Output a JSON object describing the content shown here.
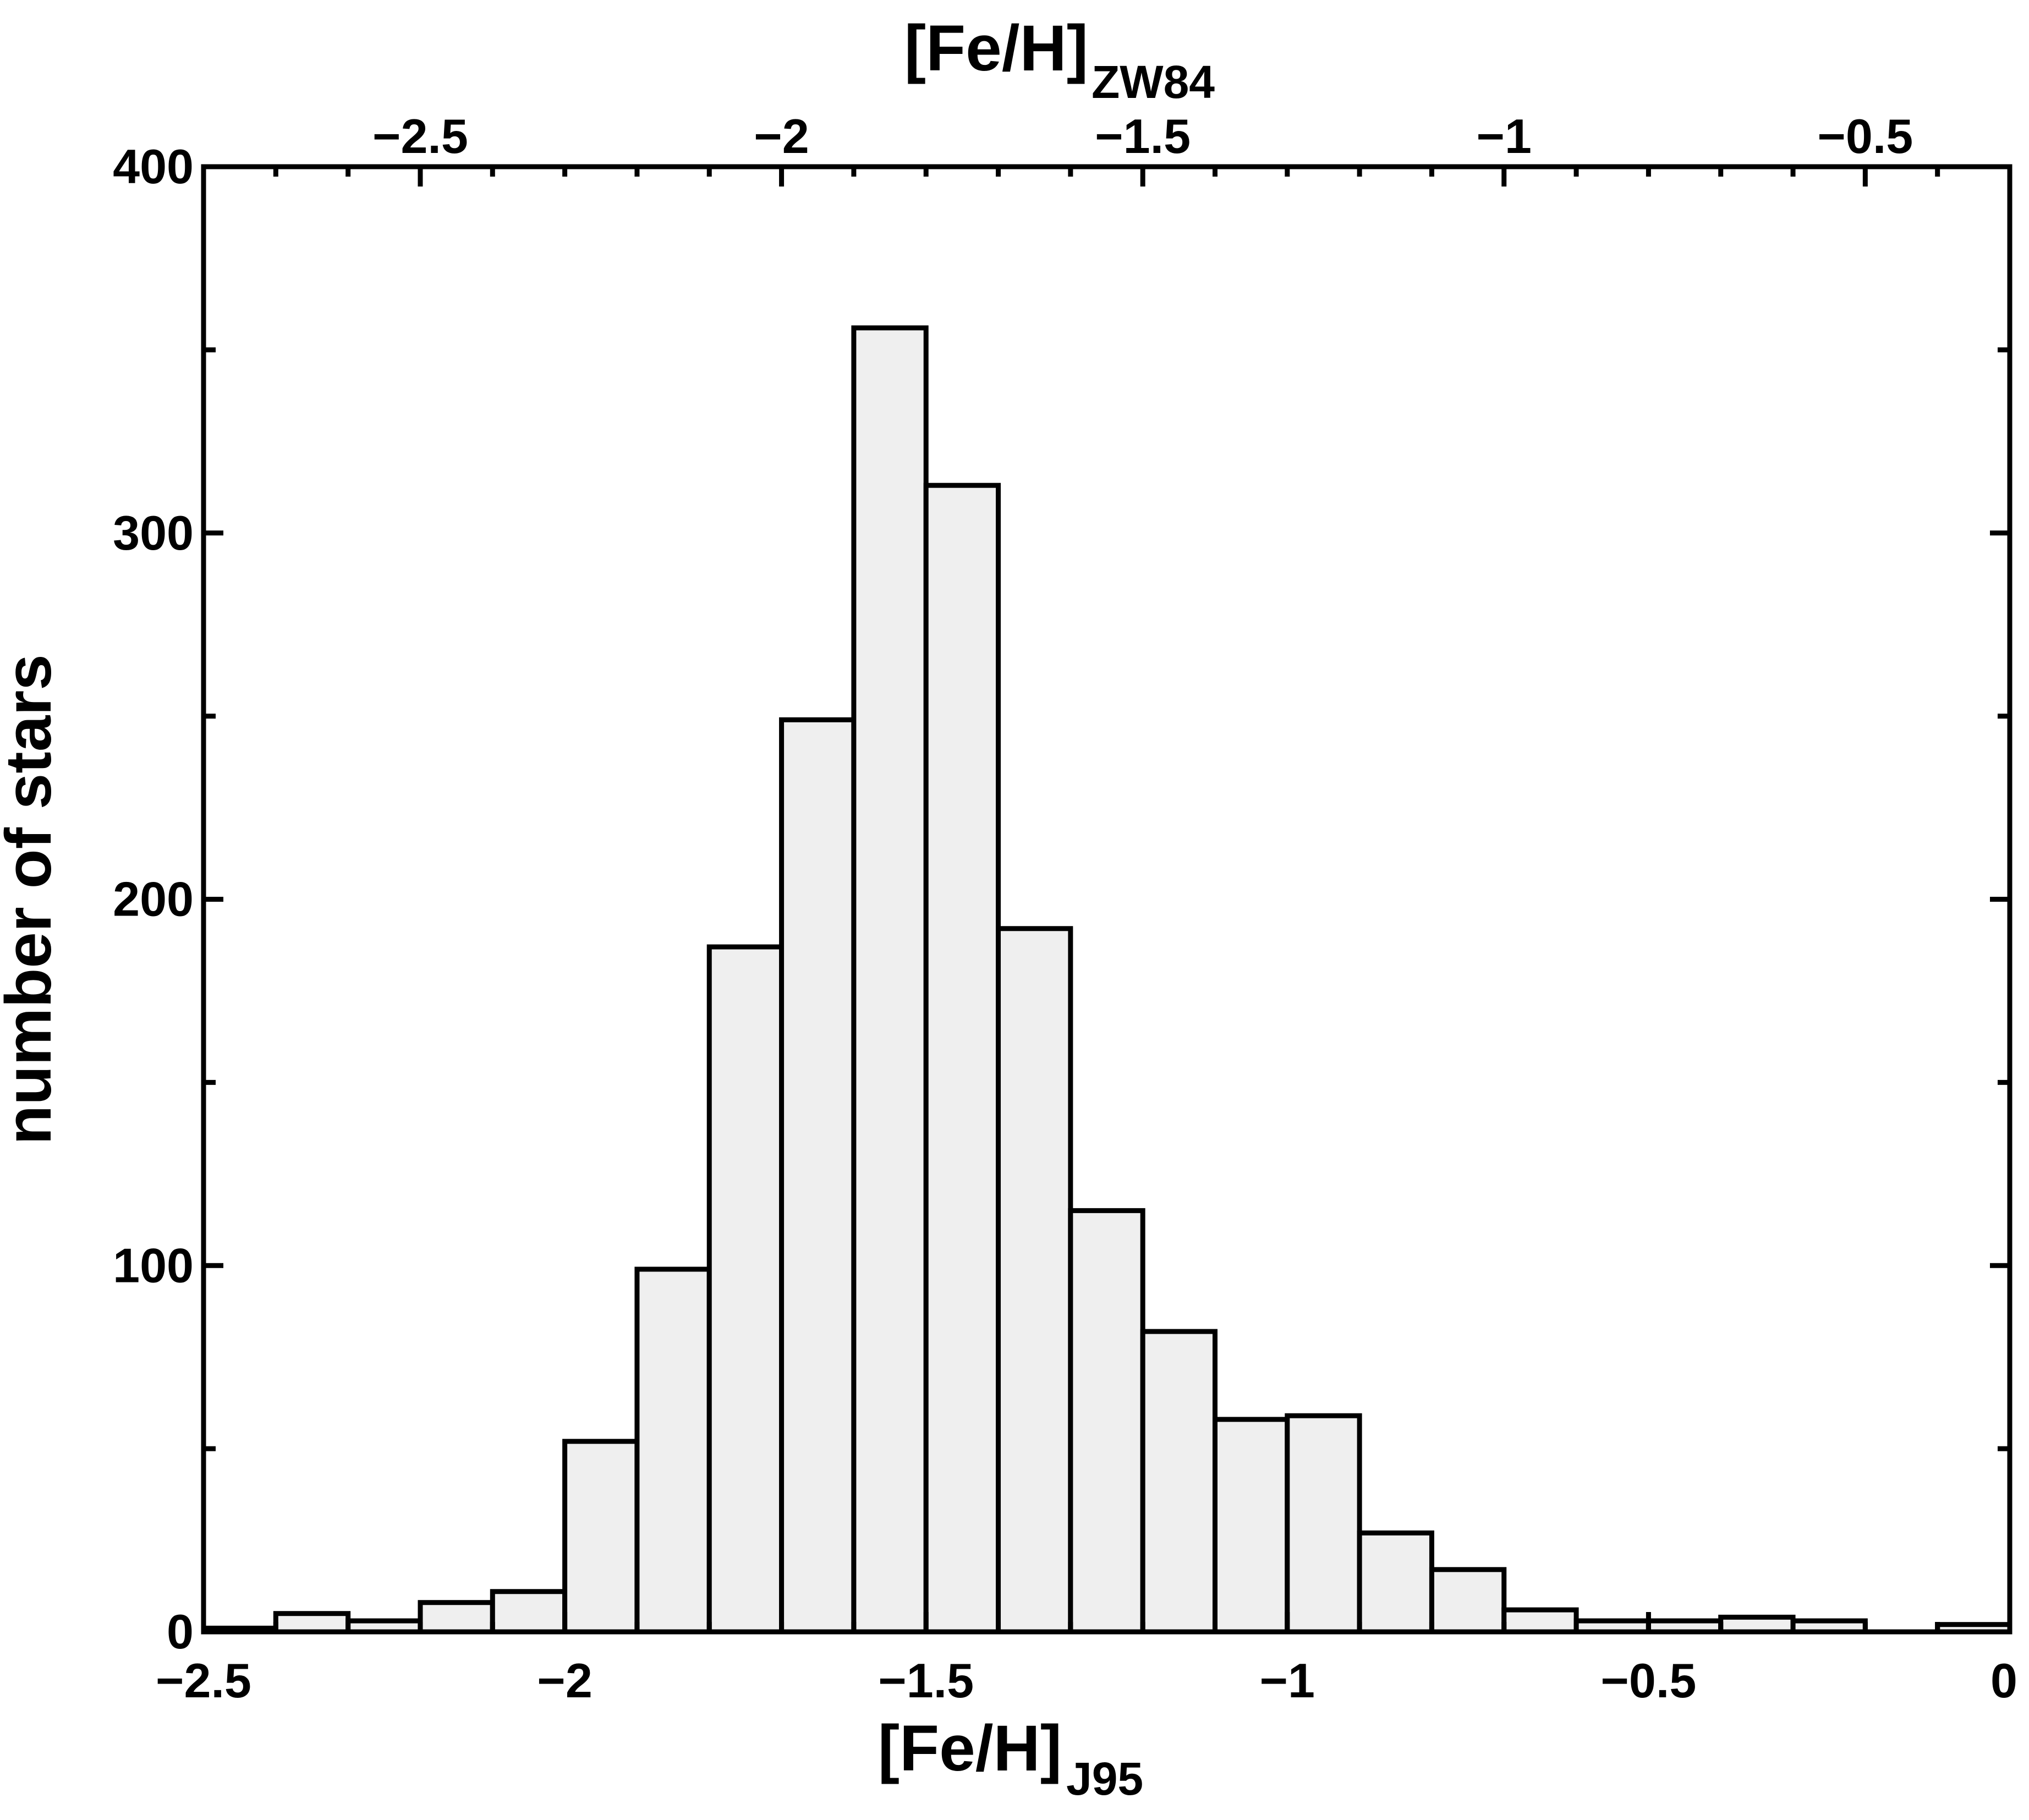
{
  "chart_data": {
    "type": "bar",
    "bin_width": 0.1,
    "bins": [
      {
        "x0": -2.5,
        "x1": -2.4,
        "value": 1
      },
      {
        "x0": -2.4,
        "x1": -2.3,
        "value": 5
      },
      {
        "x0": -2.3,
        "x1": -2.2,
        "value": 3
      },
      {
        "x0": -2.2,
        "x1": -2.1,
        "value": 8
      },
      {
        "x0": -2.1,
        "x1": -2.0,
        "value": 11
      },
      {
        "x0": -2.0,
        "x1": -1.9,
        "value": 52
      },
      {
        "x0": -1.9,
        "x1": -1.8,
        "value": 99
      },
      {
        "x0": -1.8,
        "x1": -1.7,
        "value": 187
      },
      {
        "x0": -1.7,
        "x1": -1.6,
        "value": 249
      },
      {
        "x0": -1.6,
        "x1": -1.5,
        "value": 356
      },
      {
        "x0": -1.5,
        "x1": -1.4,
        "value": 313
      },
      {
        "x0": -1.4,
        "x1": -1.3,
        "value": 192
      },
      {
        "x0": -1.3,
        "x1": -1.2,
        "value": 115
      },
      {
        "x0": -1.2,
        "x1": -1.1,
        "value": 82
      },
      {
        "x0": -1.1,
        "x1": -1.0,
        "value": 58
      },
      {
        "x0": -1.0,
        "x1": -0.9,
        "value": 59
      },
      {
        "x0": -0.9,
        "x1": -0.8,
        "value": 27
      },
      {
        "x0": -0.8,
        "x1": -0.7,
        "value": 17
      },
      {
        "x0": -0.7,
        "x1": -0.6,
        "value": 6
      },
      {
        "x0": -0.6,
        "x1": -0.5,
        "value": 3
      },
      {
        "x0": -0.5,
        "x1": -0.4,
        "value": 3
      },
      {
        "x0": -0.4,
        "x1": -0.3,
        "value": 4
      },
      {
        "x0": -0.3,
        "x1": -0.2,
        "value": 3
      },
      {
        "x0": -0.2,
        "x1": -0.1,
        "value": 0
      },
      {
        "x0": -0.1,
        "x1": 0.0,
        "value": 2
      }
    ],
    "xlim": [
      -2.5,
      0
    ],
    "ylim": [
      0,
      400
    ],
    "x_ticks": [
      -2.5,
      -2,
      -1.5,
      -1,
      -0.5,
      0
    ],
    "x_tick_labels": [
      "−2.5",
      "−2",
      "−1.5",
      "−1",
      "−0.5",
      "0"
    ],
    "y_ticks": [
      0,
      100,
      200,
      300,
      400
    ],
    "y_tick_labels": [
      "0",
      "100",
      "200",
      "300",
      "400"
    ],
    "top_axis": {
      "ticks": [
        -2.5,
        -2,
        -1.5,
        -1,
        -0.5
      ],
      "tick_labels": [
        "−2.5",
        "−2",
        "−1.5",
        "−1",
        "−0.5"
      ],
      "xlim": [
        -2.8,
        -0.3
      ],
      "label_main": "[Fe/H]",
      "label_sub": "ZW84"
    },
    "xlabel_main": "[Fe/H]",
    "xlabel_sub": "J95",
    "ylabel": "number of stars",
    "grid": false
  }
}
